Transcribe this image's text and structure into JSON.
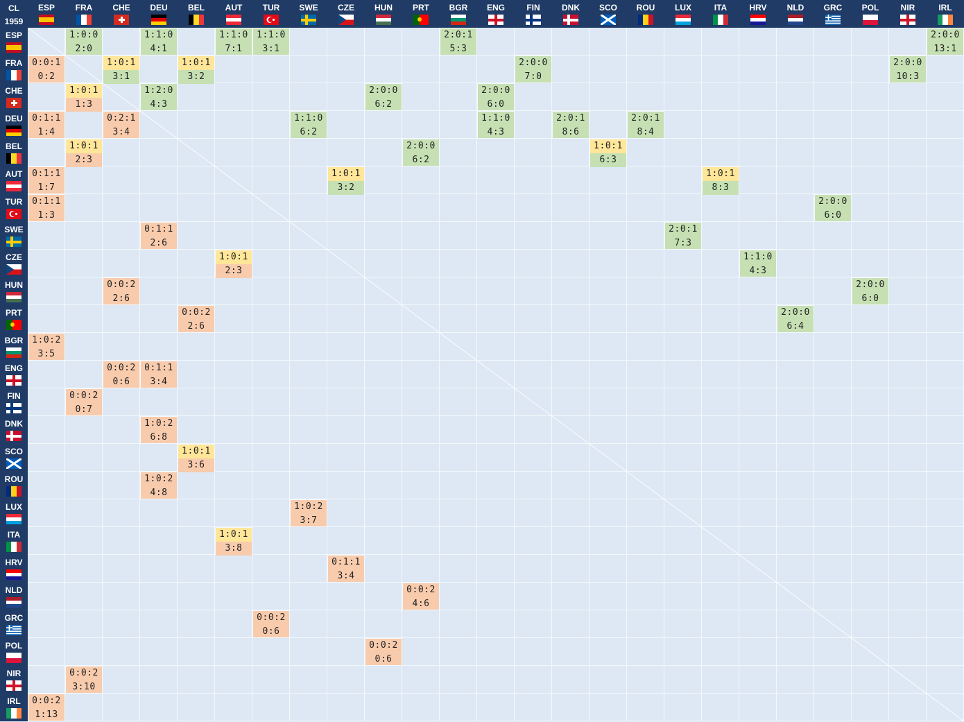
{
  "corner": {
    "top": "CL",
    "bottom": "1959"
  },
  "teams": [
    {
      "code": "ESP",
      "flag": {
        "type": "hstripes",
        "colors": [
          "#c60b1e",
          "#ffc400",
          "#ffc400",
          "#c60b1e"
        ]
      }
    },
    {
      "code": "FRA",
      "flag": {
        "type": "vstripes",
        "colors": [
          "#0055a4",
          "#ffffff",
          "#ef4135"
        ]
      }
    },
    {
      "code": "CHE",
      "flag": {
        "type": "cross",
        "bg": "#d52b1e",
        "fg": "#ffffff"
      }
    },
    {
      "code": "DEU",
      "flag": {
        "type": "hstripes",
        "colors": [
          "#000000",
          "#dd0000",
          "#ffce00"
        ]
      }
    },
    {
      "code": "BEL",
      "flag": {
        "type": "vstripes",
        "colors": [
          "#000000",
          "#fdda24",
          "#ef3340"
        ]
      }
    },
    {
      "code": "AUT",
      "flag": {
        "type": "hstripes",
        "colors": [
          "#ed2939",
          "#ffffff",
          "#ed2939"
        ]
      }
    },
    {
      "code": "TUR",
      "flag": {
        "type": "crescent",
        "bg": "#e30a17",
        "fg": "#ffffff"
      }
    },
    {
      "code": "SWE",
      "flag": {
        "type": "nordic",
        "bg": "#006aa7",
        "fg": "#fecc00"
      }
    },
    {
      "code": "CZE",
      "flag": {
        "type": "czech",
        "colors": [
          "#ffffff",
          "#d7141a",
          "#11457e"
        ]
      }
    },
    {
      "code": "HUN",
      "flag": {
        "type": "hstripes",
        "colors": [
          "#ce2939",
          "#ffffff",
          "#477050"
        ]
      }
    },
    {
      "code": "PRT",
      "flag": {
        "type": "vsplit",
        "colors": [
          "#006600",
          "#ff0000"
        ]
      }
    },
    {
      "code": "BGR",
      "flag": {
        "type": "hstripes",
        "colors": [
          "#ffffff",
          "#00966e",
          "#d62612"
        ]
      }
    },
    {
      "code": "ENG",
      "flag": {
        "type": "cross",
        "bg": "#ffffff",
        "fg": "#ce1124"
      }
    },
    {
      "code": "FIN",
      "flag": {
        "type": "nordic",
        "bg": "#ffffff",
        "fg": "#003580"
      }
    },
    {
      "code": "DNK",
      "flag": {
        "type": "nordic",
        "bg": "#c8102e",
        "fg": "#ffffff"
      }
    },
    {
      "code": "SCO",
      "flag": {
        "type": "saltire",
        "bg": "#005eb8",
        "fg": "#ffffff"
      }
    },
    {
      "code": "ROU",
      "flag": {
        "type": "vstripes",
        "colors": [
          "#002b7f",
          "#fcd116",
          "#ce1126"
        ]
      }
    },
    {
      "code": "LUX",
      "flag": {
        "type": "hstripes",
        "colors": [
          "#ed2939",
          "#ffffff",
          "#00a1de"
        ]
      }
    },
    {
      "code": "ITA",
      "flag": {
        "type": "vstripes",
        "colors": [
          "#009246",
          "#ffffff",
          "#ce2b37"
        ]
      }
    },
    {
      "code": "HRV",
      "flag": {
        "type": "hstripes",
        "colors": [
          "#ff0000",
          "#ffffff",
          "#171796"
        ]
      }
    },
    {
      "code": "NLD",
      "flag": {
        "type": "hstripes",
        "colors": [
          "#ae1c28",
          "#ffffff",
          "#21468b"
        ]
      }
    },
    {
      "code": "GRC",
      "flag": {
        "type": "greece",
        "bg": "#0d5eaf",
        "fg": "#ffffff"
      }
    },
    {
      "code": "POL",
      "flag": {
        "type": "hstripes",
        "colors": [
          "#ffffff",
          "#dc143c"
        ]
      }
    },
    {
      "code": "NIR",
      "flag": {
        "type": "cross",
        "bg": "#ffffff",
        "fg": "#cf142b"
      }
    },
    {
      "code": "IRL",
      "flag": {
        "type": "vstripes",
        "colors": [
          "#169b62",
          "#ffffff",
          "#ff883e"
        ]
      }
    }
  ],
  "results": [
    {
      "row": 0,
      "col": 1,
      "record": "1:0:0",
      "score": "2:0",
      "kind": "win"
    },
    {
      "row": 0,
      "col": 3,
      "record": "1:1:0",
      "score": "4:1",
      "kind": "win"
    },
    {
      "row": 0,
      "col": 5,
      "record": "1:1:0",
      "score": "7:1",
      "kind": "win"
    },
    {
      "row": 0,
      "col": 6,
      "record": "1:1:0",
      "score": "3:1",
      "kind": "win"
    },
    {
      "row": 0,
      "col": 11,
      "record": "2:0:1",
      "score": "5:3",
      "kind": "win"
    },
    {
      "row": 0,
      "col": 24,
      "record": "2:0:0",
      "score": "13:1",
      "kind": "win"
    },
    {
      "row": 1,
      "col": 0,
      "record": "0:0:1",
      "score": "0:2",
      "kind": "loss"
    },
    {
      "row": 1,
      "col": 2,
      "record": "1:0:1",
      "score": "3:1",
      "kind": "drawwin"
    },
    {
      "row": 1,
      "col": 4,
      "record": "1:0:1",
      "score": "3:2",
      "kind": "drawwin"
    },
    {
      "row": 1,
      "col": 13,
      "record": "2:0:0",
      "score": "7:0",
      "kind": "win"
    },
    {
      "row": 1,
      "col": 23,
      "record": "2:0:0",
      "score": "10:3",
      "kind": "win"
    },
    {
      "row": 2,
      "col": 1,
      "record": "1:0:1",
      "score": "1:3",
      "kind": "draw"
    },
    {
      "row": 2,
      "col": 3,
      "record": "1:2:0",
      "score": "4:3",
      "kind": "win"
    },
    {
      "row": 2,
      "col": 9,
      "record": "2:0:0",
      "score": "6:2",
      "kind": "win"
    },
    {
      "row": 2,
      "col": 12,
      "record": "2:0:0",
      "score": "6:0",
      "kind": "win"
    },
    {
      "row": 3,
      "col": 0,
      "record": "0:1:1",
      "score": "1:4",
      "kind": "loss"
    },
    {
      "row": 3,
      "col": 2,
      "record": "0:2:1",
      "score": "3:4",
      "kind": "loss"
    },
    {
      "row": 3,
      "col": 7,
      "record": "1:1:0",
      "score": "6:2",
      "kind": "win"
    },
    {
      "row": 3,
      "col": 12,
      "record": "1:1:0",
      "score": "4:3",
      "kind": "win"
    },
    {
      "row": 3,
      "col": 14,
      "record": "2:0:1",
      "score": "8:6",
      "kind": "win"
    },
    {
      "row": 3,
      "col": 16,
      "record": "2:0:1",
      "score": "8:4",
      "kind": "win"
    },
    {
      "row": 4,
      "col": 1,
      "record": "1:0:1",
      "score": "2:3",
      "kind": "draw"
    },
    {
      "row": 4,
      "col": 10,
      "record": "2:0:0",
      "score": "6:2",
      "kind": "win"
    },
    {
      "row": 4,
      "col": 15,
      "record": "1:0:1",
      "score": "6:3",
      "kind": "drawwin"
    },
    {
      "row": 5,
      "col": 0,
      "record": "0:1:1",
      "score": "1:7",
      "kind": "loss"
    },
    {
      "row": 5,
      "col": 8,
      "record": "1:0:1",
      "score": "3:2",
      "kind": "drawwin"
    },
    {
      "row": 5,
      "col": 18,
      "record": "1:0:1",
      "score": "8:3",
      "kind": "drawwin"
    },
    {
      "row": 6,
      "col": 0,
      "record": "0:1:1",
      "score": "1:3",
      "kind": "loss"
    },
    {
      "row": 6,
      "col": 21,
      "record": "2:0:0",
      "score": "6:0",
      "kind": "win"
    },
    {
      "row": 7,
      "col": 3,
      "record": "0:1:1",
      "score": "2:6",
      "kind": "loss"
    },
    {
      "row": 7,
      "col": 17,
      "record": "2:0:1",
      "score": "7:3",
      "kind": "win"
    },
    {
      "row": 8,
      "col": 5,
      "record": "1:0:1",
      "score": "2:3",
      "kind": "draw"
    },
    {
      "row": 8,
      "col": 19,
      "record": "1:1:0",
      "score": "4:3",
      "kind": "win"
    },
    {
      "row": 9,
      "col": 2,
      "record": "0:0:2",
      "score": "2:6",
      "kind": "loss"
    },
    {
      "row": 9,
      "col": 22,
      "record": "2:0:0",
      "score": "6:0",
      "kind": "win"
    },
    {
      "row": 10,
      "col": 4,
      "record": "0:0:2",
      "score": "2:6",
      "kind": "loss"
    },
    {
      "row": 10,
      "col": 20,
      "record": "2:0:0",
      "score": "6:4",
      "kind": "win"
    },
    {
      "row": 11,
      "col": 0,
      "record": "1:0:2",
      "score": "3:5",
      "kind": "loss"
    },
    {
      "row": 12,
      "col": 2,
      "record": "0:0:2",
      "score": "0:6",
      "kind": "loss"
    },
    {
      "row": 12,
      "col": 3,
      "record": "0:1:1",
      "score": "3:4",
      "kind": "loss"
    },
    {
      "row": 13,
      "col": 1,
      "record": "0:0:2",
      "score": "0:7",
      "kind": "loss"
    },
    {
      "row": 14,
      "col": 3,
      "record": "1:0:2",
      "score": "6:8",
      "kind": "loss"
    },
    {
      "row": 15,
      "col": 4,
      "record": "1:0:1",
      "score": "3:6",
      "kind": "draw"
    },
    {
      "row": 16,
      "col": 3,
      "record": "1:0:2",
      "score": "4:8",
      "kind": "loss"
    },
    {
      "row": 17,
      "col": 7,
      "record": "1:0:2",
      "score": "3:7",
      "kind": "loss"
    },
    {
      "row": 18,
      "col": 5,
      "record": "1:0:1",
      "score": "3:8",
      "kind": "draw"
    },
    {
      "row": 19,
      "col": 8,
      "record": "0:1:1",
      "score": "3:4",
      "kind": "loss"
    },
    {
      "row": 20,
      "col": 10,
      "record": "0:0:2",
      "score": "4:6",
      "kind": "loss"
    },
    {
      "row": 21,
      "col": 6,
      "record": "0:0:2",
      "score": "0:6",
      "kind": "loss"
    },
    {
      "row": 22,
      "col": 9,
      "record": "0:0:2",
      "score": "0:6",
      "kind": "loss"
    },
    {
      "row": 23,
      "col": 1,
      "record": "0:0:2",
      "score": "3:10",
      "kind": "loss"
    },
    {
      "row": 24,
      "col": 0,
      "record": "0:0:2",
      "score": "1:13",
      "kind": "loss"
    }
  ],
  "colors": {
    "header": "#1f3b66",
    "win": "#c6e0b4",
    "draw": "#ffe699",
    "loss": "#f8cbad",
    "cell": "#dde8f4",
    "gridline": "#f4f8fc"
  }
}
